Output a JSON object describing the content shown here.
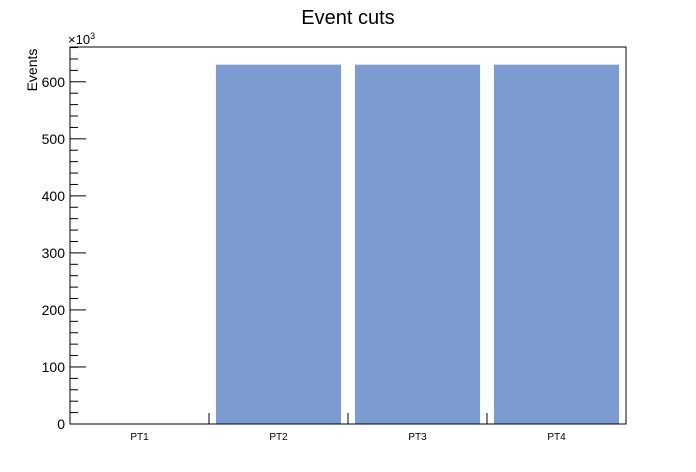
{
  "chart_data": {
    "type": "bar",
    "title": "Event cuts",
    "xlabel": "",
    "ylabel": "Events",
    "y_multiplier_base": "×10",
    "y_multiplier_exponent": "3",
    "categories": [
      "PT1",
      "PT2",
      "PT3",
      "PT4"
    ],
    "values": [
      0,
      630,
      630,
      630
    ],
    "ylim": [
      0,
      661
    ],
    "yticks": [
      0,
      100,
      200,
      300,
      400,
      500,
      600
    ],
    "ytick_labels": [
      "0",
      "100",
      "200",
      "300",
      "400",
      "500",
      "600"
    ],
    "grid": false,
    "legend": "none",
    "bar_color": "#7b9bd1"
  }
}
